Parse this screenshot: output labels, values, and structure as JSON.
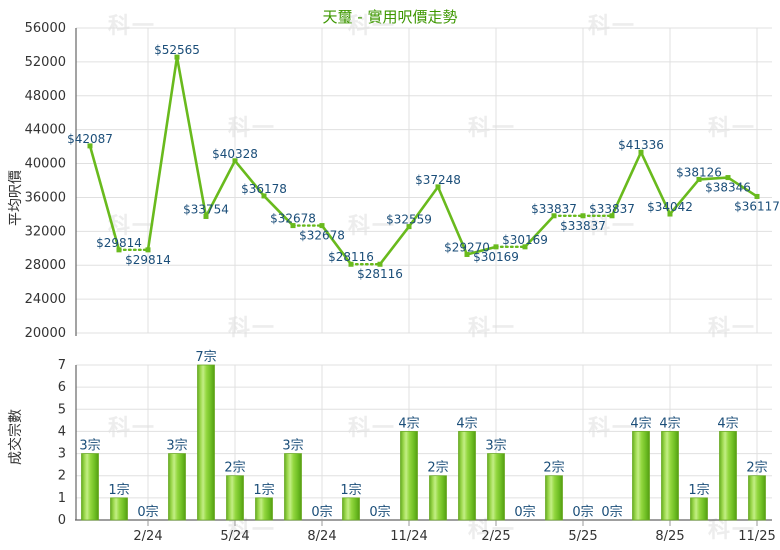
{
  "title": "天璽 - 實用呎價走勢",
  "watermark_text": "科一",
  "colors": {
    "title_green": "#3d9700",
    "series_green": "#69ba1d",
    "label_blue": "#1b4e79",
    "axis_text": "#333333",
    "axis_line": "#666666",
    "tick_line": "#999999",
    "grid": "#e0e0e0",
    "watermark": "#ededed",
    "bar_edge": "#68a822",
    "bar_gradient": [
      "#66ad21",
      "#9ed94f",
      "#c3ee85",
      "#94d840",
      "#6cbc22",
      "#559d12"
    ]
  },
  "chart_data": [
    {
      "type": "line",
      "name": "average-price-trend",
      "ylabel": "平均呎價",
      "ylim": [
        20000,
        56000
      ],
      "ytick_step": 4000,
      "ytick_labels": [
        "20000",
        "24000",
        "28000",
        "32000",
        "36000",
        "40000",
        "44000",
        "48000",
        "52000",
        "56000"
      ],
      "x_tick_labels": [
        "2/24",
        "5/24",
        "8/24",
        "11/24",
        "2/25",
        "5/25",
        "8/25",
        "11/25"
      ],
      "x_tick_indices": [
        2,
        5,
        8,
        11,
        14,
        17,
        20,
        23
      ],
      "values": [
        42087,
        29814,
        29814,
        52565,
        33754,
        40328,
        36178,
        32678,
        32678,
        28116,
        28116,
        32559,
        37248,
        29270,
        30169,
        30169,
        33837,
        33837,
        33837,
        41336,
        34042,
        38126,
        38346,
        36117
      ],
      "point_labels": [
        "$42087",
        "$29814",
        "$29814",
        "$52565",
        "$33754",
        "$40328",
        "$36178",
        "$32678",
        "$32678",
        "$28116",
        "$28116",
        "$32559",
        "$37248",
        "$29270",
        "$30169",
        "$30169",
        "$33837",
        "$33837",
        "$33837",
        "$41336",
        "$34042",
        "$38126",
        "$38346",
        "$36117"
      ],
      "label_below_indices": [
        2,
        8,
        10,
        14,
        17,
        22,
        23
      ],
      "dotted_segment_start_indices": [
        1,
        7,
        9,
        14,
        16,
        17
      ],
      "grid": true,
      "legend": "none"
    },
    {
      "type": "bar",
      "name": "transaction-count",
      "ylabel": "成交宗數",
      "ylim": [
        0,
        7
      ],
      "ytick_step": 1,
      "ytick_labels": [
        "0",
        "1",
        "2",
        "3",
        "4",
        "5",
        "6",
        "7"
      ],
      "x_tick_labels": [
        "2/24",
        "5/24",
        "8/24",
        "11/24",
        "2/25",
        "5/25",
        "8/25",
        "11/25"
      ],
      "x_tick_indices": [
        2,
        5,
        8,
        11,
        14,
        17,
        20,
        23
      ],
      "values": [
        3,
        1,
        0,
        3,
        7,
        2,
        1,
        3,
        0,
        1,
        0,
        4,
        2,
        4,
        3,
        0,
        2,
        0,
        0,
        4,
        4,
        1,
        4,
        2
      ],
      "bar_labels": [
        "3宗",
        "1宗",
        "0宗",
        "3宗",
        "7宗",
        "2宗",
        "1宗",
        "3宗",
        "0宗",
        "1宗",
        "0宗",
        "4宗",
        "2宗",
        "4宗",
        "3宗",
        "0宗",
        "2宗",
        "0宗",
        "0宗",
        "4宗",
        "4宗",
        "1宗",
        "4宗",
        "2宗"
      ],
      "grid": true,
      "legend": "none"
    }
  ]
}
